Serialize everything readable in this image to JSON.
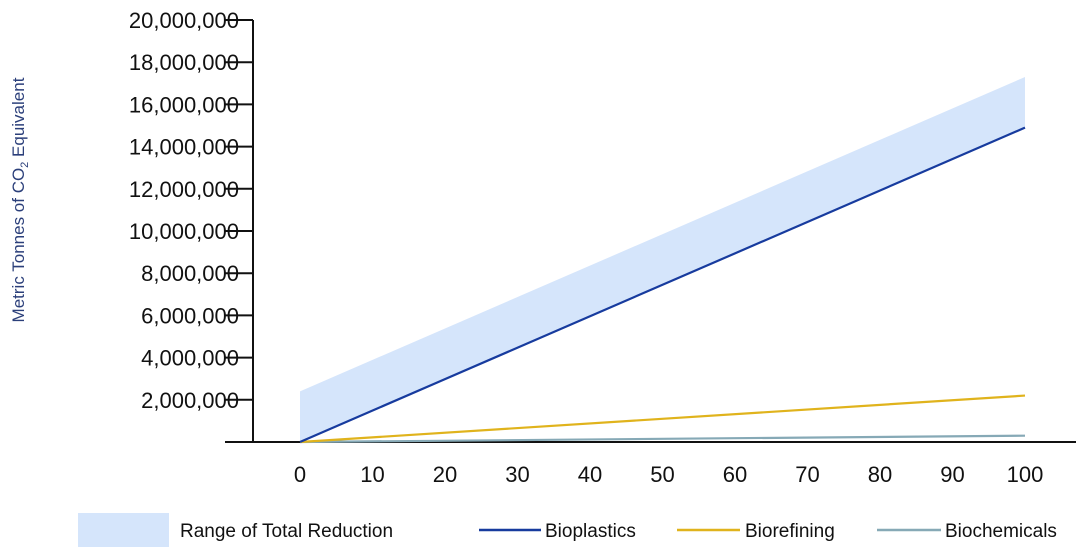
{
  "chart_data": {
    "type": "line",
    "title": "",
    "xlabel": "",
    "ylabel": {
      "prefix": "Metric Tonnes of CO",
      "subscript": "2",
      "suffix": " Equivalent"
    },
    "xlim": [
      -8,
      104
    ],
    "ylim": [
      0,
      20000000
    ],
    "x_ticks": [
      0,
      10,
      20,
      30,
      40,
      50,
      60,
      70,
      80,
      90,
      100
    ],
    "x_tick_labels": [
      "0",
      "10",
      "20",
      "30",
      "40",
      "50",
      "60",
      "70",
      "80",
      "90",
      "100"
    ],
    "y_ticks": [
      2000000,
      4000000,
      6000000,
      8000000,
      10000000,
      12000000,
      14000000,
      16000000,
      18000000,
      20000000
    ],
    "y_tick_labels": [
      "2,000,000",
      "4,000,000",
      "6,000,000",
      "8,000,000",
      "10,000,000",
      "12,000,000",
      "14,000,000",
      "16,000,000",
      "18,000,000",
      "20,000,000"
    ],
    "band": {
      "name": "Range of Total Reduction",
      "color": "#d5e5fb",
      "x": [
        0,
        100
      ],
      "lower": [
        0,
        14900000
      ],
      "upper": [
        2400000,
        17300000
      ]
    },
    "series": [
      {
        "name": "Bioplastics",
        "color": "#173b9e",
        "x": [
          0,
          100
        ],
        "values": [
          0,
          14900000
        ]
      },
      {
        "name": "Biorefining",
        "color": "#e0b31c",
        "x": [
          0,
          100
        ],
        "values": [
          0,
          2200000
        ]
      },
      {
        "name": "Biochemicals",
        "color": "#86a9b6",
        "x": [
          0,
          100
        ],
        "values": [
          0,
          300000
        ]
      }
    ],
    "legend_position": "bottom",
    "grid": false
  }
}
